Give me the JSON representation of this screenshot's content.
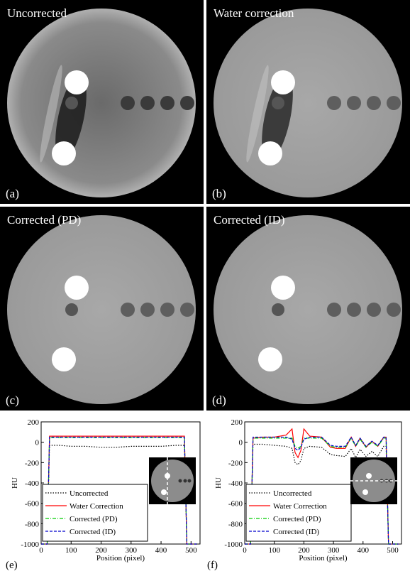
{
  "panels": [
    {
      "title": "Uncorrected",
      "label": "(a)"
    },
    {
      "title": "Water correction",
      "label": "(b)"
    },
    {
      "title": "Corrected (PD)",
      "label": "(c)"
    },
    {
      "title": "Corrected (ID)",
      "label": "(d)"
    }
  ],
  "chart_data": [
    {
      "type": "line",
      "label": "(e)",
      "xlabel": "Position (pixel)",
      "ylabel": "HU",
      "xlim": [
        0,
        530
      ],
      "ylim": [
        -1000,
        200
      ],
      "xticks": [
        0,
        100,
        200,
        300,
        400,
        500
      ],
      "yticks": [
        200,
        0,
        -200,
        -400,
        -600,
        -800,
        -1000
      ],
      "legend": "lower left",
      "x": [
        0,
        20,
        28,
        60,
        100,
        150,
        200,
        250,
        300,
        350,
        400,
        450,
        478,
        486,
        500,
        520
      ],
      "series": [
        {
          "name": "Uncorrected",
          "color": "#000000",
          "values": [
            -1000,
            -1000,
            -30,
            -30,
            -40,
            -40,
            -50,
            -50,
            -40,
            -40,
            -40,
            -30,
            -30,
            -1000,
            -1000,
            -1000
          ]
        },
        {
          "name": "Water Correction",
          "color": "#ff0000",
          "values": [
            -1000,
            -1000,
            60,
            60,
            60,
            60,
            60,
            60,
            60,
            60,
            60,
            60,
            60,
            -1000,
            -1000,
            -1000
          ]
        },
        {
          "name": "Corrected (PD)",
          "color": "#00cc00",
          "values": [
            -1000,
            -1000,
            45,
            45,
            45,
            45,
            45,
            45,
            45,
            45,
            45,
            45,
            45,
            -1000,
            -1000,
            -1000
          ]
        },
        {
          "name": "Corrected (ID)",
          "color": "#0000cc",
          "values": [
            -1000,
            -1000,
            50,
            50,
            50,
            50,
            50,
            50,
            50,
            50,
            50,
            50,
            50,
            -1000,
            -1000,
            -1000
          ]
        }
      ]
    },
    {
      "type": "line",
      "label": "(f)",
      "xlabel": "Position (pixel)",
      "ylabel": "HU",
      "xlim": [
        0,
        530
      ],
      "ylim": [
        -1000,
        200
      ],
      "xticks": [
        0,
        100,
        200,
        300,
        400,
        500
      ],
      "yticks": [
        200,
        0,
        -200,
        -400,
        -600,
        -800,
        -1000
      ],
      "legend": "lower left",
      "x": [
        0,
        20,
        28,
        60,
        100,
        140,
        160,
        170,
        180,
        190,
        200,
        220,
        260,
        290,
        310,
        340,
        360,
        375,
        390,
        410,
        430,
        450,
        470,
        478,
        486,
        500,
        520
      ],
      "series": [
        {
          "name": "Uncorrected",
          "color": "#000000",
          "values": [
            -1000,
            -1000,
            -20,
            -20,
            -30,
            -40,
            -60,
            -200,
            -220,
            -180,
            -60,
            -40,
            -50,
            -120,
            -130,
            -140,
            -60,
            -150,
            -70,
            -140,
            -90,
            -140,
            -40,
            -40,
            -1000,
            -1000,
            -1000
          ]
        },
        {
          "name": "Water Correction",
          "color": "#ff0000",
          "values": [
            -1000,
            -1000,
            40,
            50,
            50,
            70,
            130,
            -100,
            -150,
            -80,
            130,
            60,
            50,
            -50,
            -60,
            -60,
            50,
            -40,
            40,
            -50,
            10,
            -40,
            50,
            50,
            -1000,
            -1000,
            -1000
          ]
        },
        {
          "name": "Corrected (PD)",
          "color": "#00cc00",
          "values": [
            -1000,
            -1000,
            40,
            40,
            40,
            40,
            40,
            -40,
            -60,
            -40,
            40,
            40,
            40,
            -40,
            -50,
            -50,
            40,
            -40,
            30,
            -50,
            0,
            -40,
            40,
            40,
            -1000,
            -1000,
            -1000
          ]
        },
        {
          "name": "Corrected (ID)",
          "color": "#0000cc",
          "values": [
            -1000,
            -1000,
            50,
            50,
            50,
            50,
            30,
            -60,
            -80,
            -50,
            30,
            50,
            50,
            -30,
            -40,
            -40,
            50,
            -30,
            40,
            -40,
            10,
            -30,
            50,
            50,
            -1000,
            -1000,
            -1000
          ]
        }
      ]
    }
  ]
}
